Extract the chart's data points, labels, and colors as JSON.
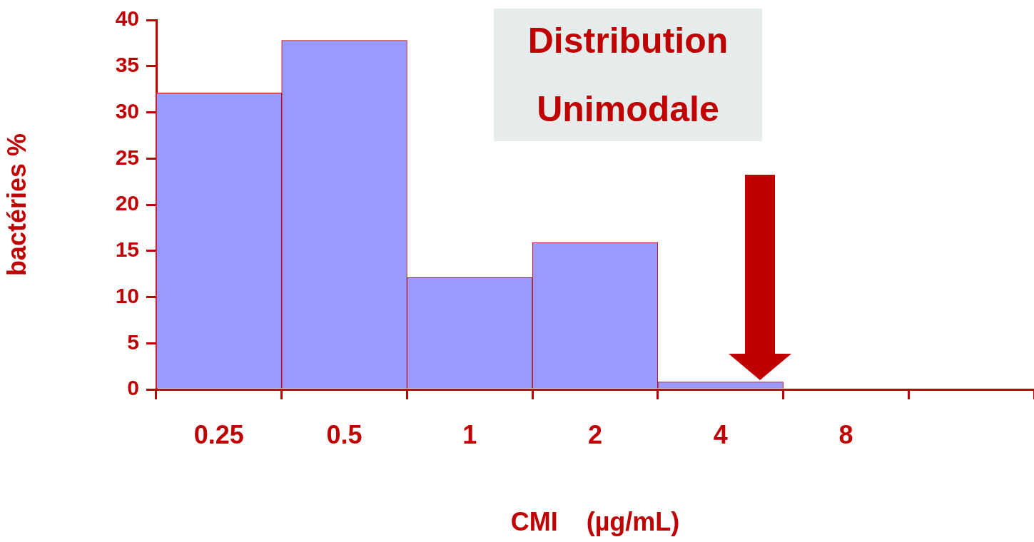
{
  "chart_data": {
    "type": "bar",
    "title": "Distribution Unimodale",
    "xlabel": "CMI    (µg/mL)",
    "ylabel": "bactéries %",
    "categories": [
      "0.25",
      "0.5",
      "1",
      "2",
      "4",
      "8",
      null
    ],
    "values": [
      32.1,
      37.8,
      12.1,
      15.9,
      0.8,
      null,
      null
    ],
    "color": "#9999ff",
    "ylim": [
      0,
      40
    ],
    "yticks": [
      0,
      5,
      10,
      15,
      20,
      25,
      30,
      35,
      40
    ]
  }
}
